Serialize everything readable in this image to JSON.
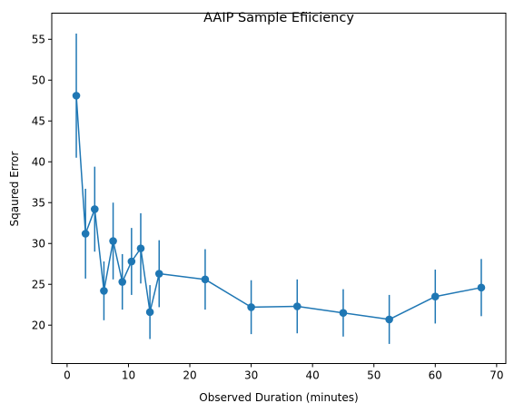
{
  "chart_data": {
    "type": "line",
    "title": "AAIP Sample Efiiciency",
    "xlabel": "Observed Duration (minutes)",
    "ylabel": "Sqaured Error",
    "xlim": [
      -2.5,
      71.5
    ],
    "ylim": [
      15.3,
      58.2
    ],
    "xticks": [
      0,
      10,
      20,
      30,
      40,
      50,
      60,
      70
    ],
    "yticks": [
      20,
      25,
      30,
      35,
      40,
      45,
      50,
      55
    ],
    "grid": false,
    "legend": "none",
    "color": "#1f77b4",
    "marker": "circle",
    "series": [
      {
        "x": [
          1.5,
          3,
          4.5,
          6,
          7.5,
          9,
          10.5,
          12,
          13.5,
          15,
          22.5,
          30,
          37.5,
          45,
          52.5,
          60,
          67.5
        ],
        "y": [
          48.1,
          31.2,
          34.2,
          24.2,
          30.3,
          25.3,
          27.8,
          29.4,
          21.6,
          26.3,
          25.6,
          22.2,
          22.3,
          21.5,
          20.7,
          23.5,
          24.6
        ],
        "yerr": [
          7.6,
          5.5,
          5.2,
          3.6,
          4.7,
          3.4,
          4.1,
          4.3,
          3.3,
          4.1,
          3.7,
          3.3,
          3.3,
          2.9,
          3.0,
          3.3,
          3.5
        ]
      }
    ]
  }
}
